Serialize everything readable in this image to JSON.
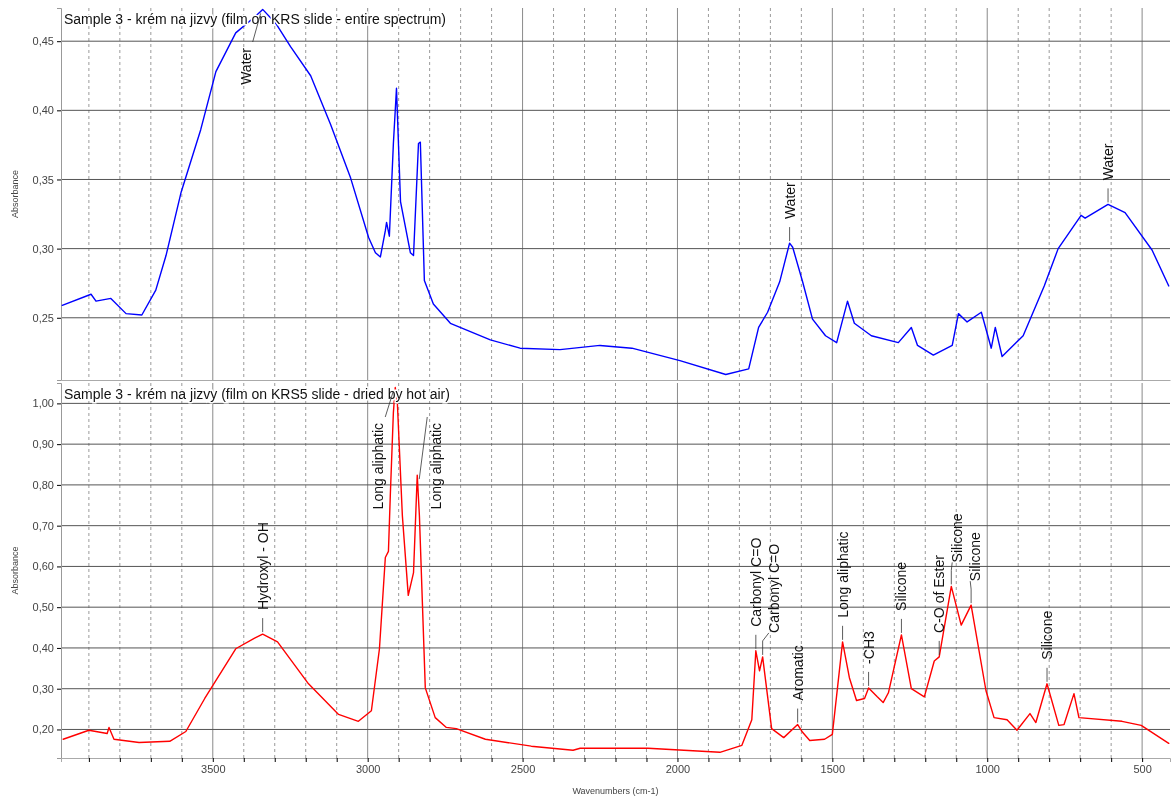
{
  "chart_data": [
    {
      "type": "line",
      "title": "Sample 3 - krém na jizvy (film on KRS slide - entire spectrum)",
      "ylabel": "Absorbance",
      "tick_labels": "y",
      "grid": true,
      "x": [
        3986,
        3893,
        3877,
        3829,
        3780,
        3729,
        3684,
        3651,
        3602,
        3539,
        3490,
        3426,
        3362,
        3339,
        3297,
        3249,
        3184,
        3120,
        3055,
        2997,
        2975,
        2959,
        2943,
        2939,
        2930,
        2917,
        2907,
        2894,
        2862,
        2852,
        2836,
        2830,
        2817,
        2788,
        2733,
        2604,
        2508,
        2379,
        2250,
        2147,
        1992,
        1844,
        1770,
        1738,
        1709,
        1670,
        1638,
        1628,
        1596,
        1564,
        1522,
        1486,
        1451,
        1429,
        1374,
        1287,
        1245,
        1225,
        1174,
        1113,
        1093,
        1065,
        1019,
        987,
        974,
        952,
        884,
        816,
        771,
        697,
        684,
        610,
        555,
        468,
        414
      ],
      "series": [
        {
          "color": "#0000ff",
          "values": [
            0.259,
            0.267,
            0.262,
            0.264,
            0.253,
            0.252,
            0.27,
            0.295,
            0.341,
            0.386,
            0.428,
            0.456,
            0.468,
            0.473,
            0.463,
            0.446,
            0.425,
            0.39,
            0.351,
            0.308,
            0.297,
            0.294,
            0.313,
            0.319,
            0.309,
            0.376,
            0.416,
            0.334,
            0.297,
            0.295,
            0.376,
            0.377,
            0.277,
            0.26,
            0.246,
            0.234,
            0.228,
            0.227,
            0.23,
            0.228,
            0.219,
            0.209,
            0.213,
            0.243,
            0.254,
            0.276,
            0.304,
            0.301,
            0.276,
            0.249,
            0.237,
            0.232,
            0.262,
            0.246,
            0.237,
            0.232,
            0.243,
            0.23,
            0.223,
            0.23,
            0.253,
            0.247,
            0.254,
            0.228,
            0.243,
            0.222,
            0.237,
            0.273,
            0.3,
            0.324,
            0.322,
            0.332,
            0.326,
            0.299,
            0.273
          ]
        }
      ],
      "xlim": [
        3990,
        410
      ],
      "ylim": [
        0.205,
        0.474
      ],
      "xticks": [
        {
          "value": 3900,
          "label": null
        },
        {
          "value": 3800,
          "label": null
        },
        {
          "value": 3700,
          "label": null
        },
        {
          "value": 3600,
          "label": null
        },
        3500,
        {
          "value": 3400,
          "label": null
        },
        {
          "value": 3300,
          "label": null
        },
        {
          "value": 3200,
          "label": null
        },
        {
          "value": 3100,
          "label": null
        },
        3000,
        {
          "value": 2900,
          "label": null
        },
        {
          "value": 2800,
          "label": null
        },
        {
          "value": 2700,
          "label": null
        },
        {
          "value": 2600,
          "label": null
        },
        2500,
        {
          "value": 2400,
          "label": null
        },
        {
          "value": 2300,
          "label": null
        },
        {
          "value": 2200,
          "label": null
        },
        {
          "value": 2100,
          "label": null
        },
        2000,
        {
          "value": 1900,
          "label": null
        },
        {
          "value": 1800,
          "label": null
        },
        {
          "value": 1700,
          "label": null
        },
        {
          "value": 1600,
          "label": null
        },
        1500,
        {
          "value": 1400,
          "label": null
        },
        {
          "value": 1300,
          "label": null
        },
        {
          "value": 1200,
          "label": null
        },
        {
          "value": 1100,
          "label": null
        },
        1000,
        {
          "value": 900,
          "label": null
        },
        {
          "value": 800,
          "label": null
        },
        {
          "value": 700,
          "label": null
        },
        {
          "value": 600,
          "label": null
        },
        500
      ],
      "yticks": [
        {
          "value": 0.25,
          "label": "0,25"
        },
        {
          "value": 0.3,
          "label": "0,30"
        },
        {
          "value": 0.35,
          "label": "0,35"
        },
        {
          "value": 0.4,
          "label": "0,40"
        },
        {
          "value": 0.45,
          "label": "0,45"
        }
      ],
      "annotations": [
        {
          "text": "Water",
          "x": 3339,
          "y": 0.473
        },
        {
          "text": "Water",
          "x": 1638,
          "y": 0.304
        },
        {
          "text": "Water",
          "x": 610,
          "y": 0.332
        }
      ]
    },
    {
      "type": "line",
      "title": "Sample 3 - krém na jizvy (film on KRS5 slide - dried by hot air)",
      "xlabel": "Wavenumbers (cm-1)",
      "ylabel": "Absorbance",
      "grid": true,
      "x": [
        3983,
        3900,
        3841,
        3835,
        3819,
        3738,
        3639,
        3587,
        3526,
        3426,
        3365,
        3339,
        3291,
        3191,
        3094,
        3030,
        2988,
        2962,
        2943,
        2933,
        2927,
        2917,
        2911,
        2904,
        2888,
        2869,
        2852,
        2840,
        2833,
        2814,
        2782,
        2746,
        2714,
        2620,
        2472,
        2337,
        2314,
        2095,
        1863,
        1792,
        1760,
        1747,
        1735,
        1725,
        1696,
        1657,
        1612,
        1596,
        1573,
        1525,
        1500,
        1467,
        1445,
        1422,
        1396,
        1383,
        1355,
        1336,
        1319,
        1277,
        1245,
        1203,
        1171,
        1155,
        1116,
        1084,
        1052,
        1004,
        978,
        936,
        904,
        862,
        843,
        807,
        769,
        752,
        720,
        704,
        565,
        503,
        414
      ],
      "series": [
        {
          "color": "#ff0000",
          "values": [
            0.176,
            0.198,
            0.19,
            0.205,
            0.176,
            0.168,
            0.171,
            0.195,
            0.276,
            0.398,
            0.424,
            0.434,
            0.415,
            0.312,
            0.237,
            0.22,
            0.246,
            0.398,
            0.622,
            0.637,
            0.773,
            0.978,
            1.039,
            0.998,
            0.724,
            0.529,
            0.585,
            0.824,
            0.724,
            0.302,
            0.229,
            0.205,
            0.202,
            0.176,
            0.159,
            0.149,
            0.154,
            0.154,
            0.144,
            0.161,
            0.224,
            0.393,
            0.344,
            0.378,
            0.202,
            0.18,
            0.212,
            0.193,
            0.173,
            0.176,
            0.188,
            0.415,
            0.327,
            0.271,
            0.276,
            0.302,
            0.28,
            0.266,
            0.29,
            0.432,
            0.3,
            0.28,
            0.368,
            0.378,
            0.551,
            0.456,
            0.505,
            0.295,
            0.229,
            0.224,
            0.198,
            0.239,
            0.217,
            0.312,
            0.21,
            0.212,
            0.288,
            0.229,
            0.22,
            0.21,
            0.166
          ]
        }
      ],
      "xlim": [
        3990,
        410
      ],
      "ylim": [
        0.13,
        1.05
      ],
      "xticks": [
        {
          "value": 3900,
          "label": null
        },
        {
          "value": 3800,
          "label": null
        },
        {
          "value": 3700,
          "label": null
        },
        {
          "value": 3600,
          "label": null
        },
        {
          "value": 3500,
          "label": "3500"
        },
        {
          "value": 3400,
          "label": null
        },
        {
          "value": 3300,
          "label": null
        },
        {
          "value": 3200,
          "label": null
        },
        {
          "value": 3100,
          "label": null
        },
        {
          "value": 3000,
          "label": "3000"
        },
        {
          "value": 2900,
          "label": null
        },
        {
          "value": 2800,
          "label": null
        },
        {
          "value": 2700,
          "label": null
        },
        {
          "value": 2600,
          "label": null
        },
        {
          "value": 2500,
          "label": "2500"
        },
        {
          "value": 2400,
          "label": null
        },
        {
          "value": 2300,
          "label": null
        },
        {
          "value": 2200,
          "label": null
        },
        {
          "value": 2100,
          "label": null
        },
        {
          "value": 2000,
          "label": "2000"
        },
        {
          "value": 1900,
          "label": null
        },
        {
          "value": 1800,
          "label": null
        },
        {
          "value": 1700,
          "label": null
        },
        {
          "value": 1600,
          "label": null
        },
        {
          "value": 1500,
          "label": "1500"
        },
        {
          "value": 1400,
          "label": null
        },
        {
          "value": 1300,
          "label": null
        },
        {
          "value": 1200,
          "label": null
        },
        {
          "value": 1100,
          "label": null
        },
        {
          "value": 1000,
          "label": "1000"
        },
        {
          "value": 900,
          "label": null
        },
        {
          "value": 800,
          "label": null
        },
        {
          "value": 700,
          "label": null
        },
        {
          "value": 600,
          "label": null
        },
        {
          "value": 500,
          "label": "500"
        }
      ],
      "yticks": [
        {
          "value": 0.2,
          "label": "0,20"
        },
        {
          "value": 0.3,
          "label": "0,30"
        },
        {
          "value": 0.4,
          "label": "0,40"
        },
        {
          "value": 0.5,
          "label": "0,50"
        },
        {
          "value": 0.6,
          "label": "0,60"
        },
        {
          "value": 0.7,
          "label": "0,70"
        },
        {
          "value": 0.8,
          "label": "0,80"
        },
        {
          "value": 0.9,
          "label": "0,90"
        },
        {
          "value": 1.0,
          "label": "1,00"
        }
      ],
      "annotations": [
        {
          "text": "Hydroxyl - OH",
          "x": 3339,
          "y": 0.434
        },
        {
          "text": "Long aliphatic",
          "x": 2911,
          "y": 1.039
        },
        {
          "text": "Long aliphatic",
          "x": 2840,
          "y": 0.824
        },
        {
          "text": "Carbonyl C=O",
          "x": 1747,
          "y": 0.393
        },
        {
          "text": "Carbonyl C=O",
          "x": 1725,
          "y": 0.378
        },
        {
          "text": "Aromatic",
          "x": 1612,
          "y": 0.212
        },
        {
          "text": "Long aliphatic",
          "x": 1467,
          "y": 0.415
        },
        {
          "text": "-CH3",
          "x": 1383,
          "y": 0.302
        },
        {
          "text": "Silicone",
          "x": 1277,
          "y": 0.432
        },
        {
          "text": "C-O of Ester",
          "x": 1155,
          "y": 0.378
        },
        {
          "text": "Silicone",
          "x": 1116,
          "y": 0.551
        },
        {
          "text": "Silicone",
          "x": 1052,
          "y": 0.505
        },
        {
          "text": "Silicone",
          "x": 807,
          "y": 0.312
        }
      ]
    }
  ]
}
